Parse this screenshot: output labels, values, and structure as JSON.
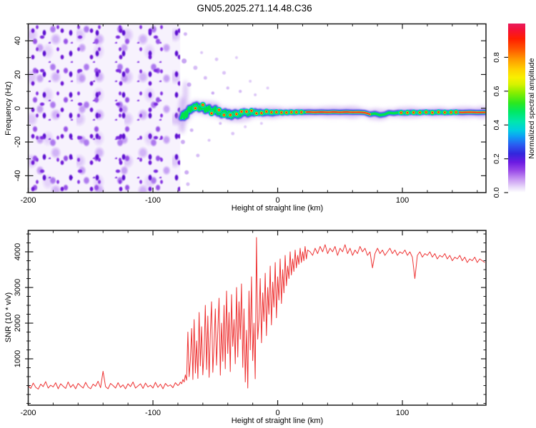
{
  "title": "GN05.2025.271.14.48.C36",
  "colors": {
    "trace_red": "#ee3333",
    "frame": "#1a1a1a",
    "noise_purple": "#7b2ae0",
    "ridge_blue": "#2b1fe0",
    "ridge_cyan": "#00ccd8",
    "ridge_green": "#00e24a",
    "ridge_yellow": "#f2e400",
    "ridge_red": "#ff1f1f",
    "halo_purple": "#cfb2f0"
  },
  "chart_data": [
    {
      "type": "heatmap",
      "title": "GN05.2025.271.14.48.C36",
      "xlabel": "Height of straight line (km)",
      "ylabel": "Frequency (Hz)",
      "xlim": [
        -200,
        167
      ],
      "ylim": [
        -50,
        50
      ],
      "xticks": [
        -200,
        -100,
        0,
        100
      ],
      "xminor_step": 20,
      "yticks": [
        -40,
        -20,
        0,
        20,
        40
      ],
      "yminor_step": 10,
      "colorbar": {
        "label": "Normalized spectral amplitude",
        "ticks": [
          0.0,
          0.2,
          0.4,
          0.6,
          0.8
        ],
        "lim": [
          0,
          1
        ]
      },
      "noise_field": {
        "x_from": -200,
        "x_to": -78,
        "note": "broadband purple speckle noise over all frequencies"
      },
      "ridge": [
        [
          -77.5,
          -6
        ],
        [
          -76,
          -3
        ],
        [
          -75,
          -6
        ],
        [
          -74,
          -2
        ],
        [
          -73,
          -5
        ],
        [
          -72,
          -1
        ],
        [
          -71,
          0.5
        ],
        [
          -70,
          -2
        ],
        [
          -69,
          1
        ],
        [
          -68,
          -1
        ],
        [
          -67,
          2
        ],
        [
          -66,
          0
        ],
        [
          -65,
          2.5
        ],
        [
          -64,
          0.5
        ],
        [
          -63,
          -1
        ],
        [
          -62,
          1.5
        ],
        [
          -61,
          -0.5
        ],
        [
          -60,
          2
        ],
        [
          -59,
          0
        ],
        [
          -58,
          -2
        ],
        [
          -57,
          0.5
        ],
        [
          -56,
          -1.5
        ],
        [
          -55,
          1
        ],
        [
          -54,
          -1
        ],
        [
          -53,
          -3
        ],
        [
          -52,
          -0.5
        ],
        [
          -51,
          -2.5
        ],
        [
          -50,
          0.5
        ],
        [
          -49,
          -1.5
        ],
        [
          -48,
          -3.5
        ],
        [
          -47,
          -1
        ],
        [
          -46,
          -3
        ],
        [
          -45,
          -4.5
        ],
        [
          -44,
          -2
        ],
        [
          -43,
          -4
        ],
        [
          -42,
          -1.5
        ],
        [
          -41,
          -3.5
        ],
        [
          -40,
          -5
        ],
        [
          -39,
          -2
        ],
        [
          -38,
          -4
        ],
        [
          -37,
          -5.5
        ],
        [
          -36,
          -2.5
        ],
        [
          -35,
          -4.5
        ],
        [
          -34,
          -2
        ],
        [
          -33,
          -3.5
        ],
        [
          -32,
          -5
        ],
        [
          -31,
          -2.5
        ],
        [
          -30,
          -4.5
        ],
        [
          -29,
          -2
        ],
        [
          -28,
          -3.5
        ],
        [
          -27,
          -1.5
        ],
        [
          -26,
          -3
        ],
        [
          -25,
          -2
        ],
        [
          -24,
          -4
        ],
        [
          -23,
          -2.5
        ],
        [
          -22,
          -3.5
        ],
        [
          -21,
          -1.5
        ],
        [
          -20,
          -2.5
        ],
        [
          -19,
          -3.5
        ],
        [
          -18,
          -1.5
        ],
        [
          -17,
          -3
        ],
        [
          -16,
          -2
        ],
        [
          -15,
          -3.2
        ],
        [
          -14,
          -1.8
        ],
        [
          -13,
          -2.8
        ],
        [
          -12,
          -3.4
        ],
        [
          -11,
          -2.2
        ],
        [
          -10,
          -3.2
        ],
        [
          -9,
          -2
        ],
        [
          -8,
          -3
        ],
        [
          -7,
          -2.2
        ],
        [
          -6,
          -3.2
        ],
        [
          -5,
          -2.4
        ],
        [
          -4,
          -3.3
        ],
        [
          -3,
          -2.2
        ],
        [
          -2,
          -3
        ],
        [
          -1,
          -2.3
        ],
        [
          0,
          -2.8
        ],
        [
          2,
          -2.2
        ],
        [
          4,
          -2.8
        ],
        [
          6,
          -2.3
        ],
        [
          8,
          -2.7
        ],
        [
          10,
          -2.2
        ],
        [
          13,
          -2.6
        ],
        [
          16,
          -2.2
        ],
        [
          20,
          -2.4
        ],
        [
          25,
          -2.2
        ],
        [
          30,
          -2.4
        ],
        [
          35,
          -2.2
        ],
        [
          40,
          -2.4
        ],
        [
          45,
          -2.2
        ],
        [
          50,
          -2.4
        ],
        [
          55,
          -2.2
        ],
        [
          60,
          -2.4
        ],
        [
          65,
          -2.3
        ],
        [
          70,
          -2.6
        ],
        [
          74,
          -3.6
        ],
        [
          78,
          -3.1
        ],
        [
          82,
          -4.1
        ],
        [
          86,
          -3.6
        ],
        [
          89,
          -2.6
        ],
        [
          93,
          -3
        ],
        [
          97,
          -2.5
        ],
        [
          102,
          -2.8
        ],
        [
          107,
          -2.4
        ],
        [
          112,
          -2.7
        ],
        [
          118,
          -2.3
        ],
        [
          124,
          -2.6
        ],
        [
          130,
          -2.3
        ],
        [
          136,
          -2.6
        ],
        [
          142,
          -2.3
        ],
        [
          148,
          -2.5
        ],
        [
          154,
          -2.3
        ],
        [
          160,
          -2.5
        ],
        [
          167,
          -2.4
        ]
      ],
      "red_core_segments_km": [
        [
          23,
          74
        ],
        [
          145,
          167
        ]
      ],
      "red_dots_km": [
        -66,
        -60,
        -53,
        -47,
        -43,
        -38,
        -33,
        -29,
        -25,
        -21,
        -17,
        -13,
        -9,
        -5,
        -1,
        3,
        7,
        11,
        15,
        19,
        99,
        104,
        109,
        114,
        119,
        124,
        129,
        134,
        139,
        143
      ],
      "halo_lumps": [
        [
          -55,
          9,
          8
        ],
        [
          -30,
          10,
          9
        ],
        [
          -5,
          12,
          8
        ],
        [
          20,
          14,
          7
        ],
        [
          45,
          16,
          8
        ],
        [
          60,
          8,
          9
        ],
        [
          80,
          9,
          8
        ],
        [
          105,
          13,
          8
        ],
        [
          128,
          10,
          7
        ],
        [
          150,
          12,
          8
        ],
        [
          164,
          6,
          9
        ]
      ],
      "onset_smears": [
        [
          -76.5,
          -4,
          5,
          26,
          0.45
        ],
        [
          -74,
          9,
          4,
          18,
          0.35
        ]
      ],
      "speckles": [
        [
          -71,
          14,
          3,
          0.5
        ],
        [
          -69,
          -13,
          2.5,
          0.45
        ],
        [
          -66,
          24,
          3,
          0.4
        ],
        [
          -64,
          -28,
          2.5,
          0.4
        ],
        [
          -61,
          33,
          2,
          0.35
        ],
        [
          -58,
          18,
          2.5,
          0.4
        ],
        [
          -55,
          -19,
          2,
          0.35
        ],
        [
          -52,
          9,
          2.2,
          0.5
        ],
        [
          -49,
          29,
          2.4,
          0.35
        ],
        [
          -46,
          -9,
          2,
          0.4
        ],
        [
          -43,
          21,
          2.6,
          0.35
        ],
        [
          -40,
          12,
          2.2,
          0.4
        ],
        [
          -36,
          -15,
          2.4,
          0.35
        ],
        [
          -33,
          30,
          2,
          0.3
        ],
        [
          -30,
          10,
          2.2,
          0.4
        ],
        [
          -26,
          -11,
          2,
          0.3
        ],
        [
          -22,
          16,
          2,
          0.3
        ],
        [
          -18,
          8,
          2,
          0.35
        ],
        [
          -13,
          -9,
          2,
          0.3
        ],
        [
          -8,
          12,
          2,
          0.3
        ],
        [
          -73,
          -38,
          3,
          0.5
        ],
        [
          -75,
          28,
          3.5,
          0.55
        ],
        [
          -76,
          -20,
          3,
          0.5
        ],
        [
          -74,
          44,
          2.5,
          0.45
        ],
        [
          -72,
          -45,
          2.5,
          0.4
        ]
      ]
    },
    {
      "type": "line",
      "xlabel": "Height of straight line (km)",
      "ylabel": "SNR (10 * v/v)",
      "xlim": [
        -200,
        167
      ],
      "ylim": [
        -300,
        4600
      ],
      "xticks": [
        -200,
        -100,
        0,
        100
      ],
      "xminor_step": 20,
      "yticks": [
        1000,
        2000,
        3000,
        4000
      ],
      "yminor_step": 250,
      "series": [
        {
          "name": "SNR",
          "color": "#ee3333",
          "segments": [
            {
              "x0": -200,
              "dx": 2,
              "values": [
                240,
                170,
                320,
                200,
                150,
                290,
                220,
                360,
                180,
                260,
                210,
                330,
                160,
                300,
                230,
                170,
                350,
                200,
                280,
                160,
                310,
                240,
                180,
                340,
                210,
                160,
                290,
                230,
                370,
                190,
                650,
                220,
                160,
                310,
                250,
                180,
                330,
                200,
                270,
                160,
                300,
                220,
                350,
                180,
                240,
                300,
                170,
                320,
                210,
                260,
                180,
                340,
                200,
                290,
                160,
                310,
                230,
                270,
                190,
                330,
                250
              ]
            },
            {
              "x0": -79,
              "dx": 1,
              "values": [
                280,
                350,
                300,
                420,
                350,
                550,
                400,
                1750,
                500,
                950,
                1850,
                420,
                2100,
                600,
                1500,
                450,
                2300,
                800,
                1900,
                550,
                1200,
                2500,
                700,
                2200,
                480,
                1700,
                2600,
                620,
                1400,
                2400,
                820,
                1800,
                2700,
                540,
                2000,
                930,
                2500,
                720,
                2900,
                1150,
                2300,
                640,
                2800,
                1350,
                2100,
                860,
                3000,
                1050,
                2600,
                1550,
                3100,
                760,
                2400,
                350,
                1800,
                180,
                2900,
                1250,
                3300,
                950,
                2000,
                440,
                4400,
                1550,
                2100,
                3250,
                1450,
                2850,
                2050,
                3400,
                1650,
                3000,
                2250,
                3600,
                1950,
                3150,
                2450,
                3700,
                2150,
                3300,
                2650,
                3800,
                2550,
                3500,
                2850,
                3900,
                3050,
                3600,
                3250,
                4000,
                3350,
                3800,
                3450,
                4050,
                3550,
                3900,
                3650,
                4100,
                3700,
                4000,
                3750,
                4150,
                3800,
                4050
              ]
            },
            {
              "x0": 26,
              "dx": 2,
              "values": [
                4000,
                3900,
                4100,
                3950,
                4150,
                4000,
                4200,
                3950,
                4100,
                4000,
                4150,
                3900,
                4100,
                4000,
                4200,
                3950,
                4100,
                3900,
                4050,
                3950,
                4150,
                4000,
                4100,
                3900,
                4000,
                3550,
                3950,
                4100,
                3950,
                4050,
                3900,
                4000,
                4100,
                3950,
                4050,
                3900,
                4000,
                3950,
                4050,
                3900,
                4000,
                3850,
                3250,
                3900,
                4000,
                3850,
                3950,
                3900,
                4000,
                3850,
                3950,
                3800,
                3900,
                3850,
                3950,
                3800,
                3900,
                3750,
                3850,
                3800,
                3900,
                3750,
                3850,
                3700,
                3800,
                3750,
                3850,
                3700,
                3800,
                3750,
                3700
              ]
            }
          ]
        }
      ]
    }
  ]
}
